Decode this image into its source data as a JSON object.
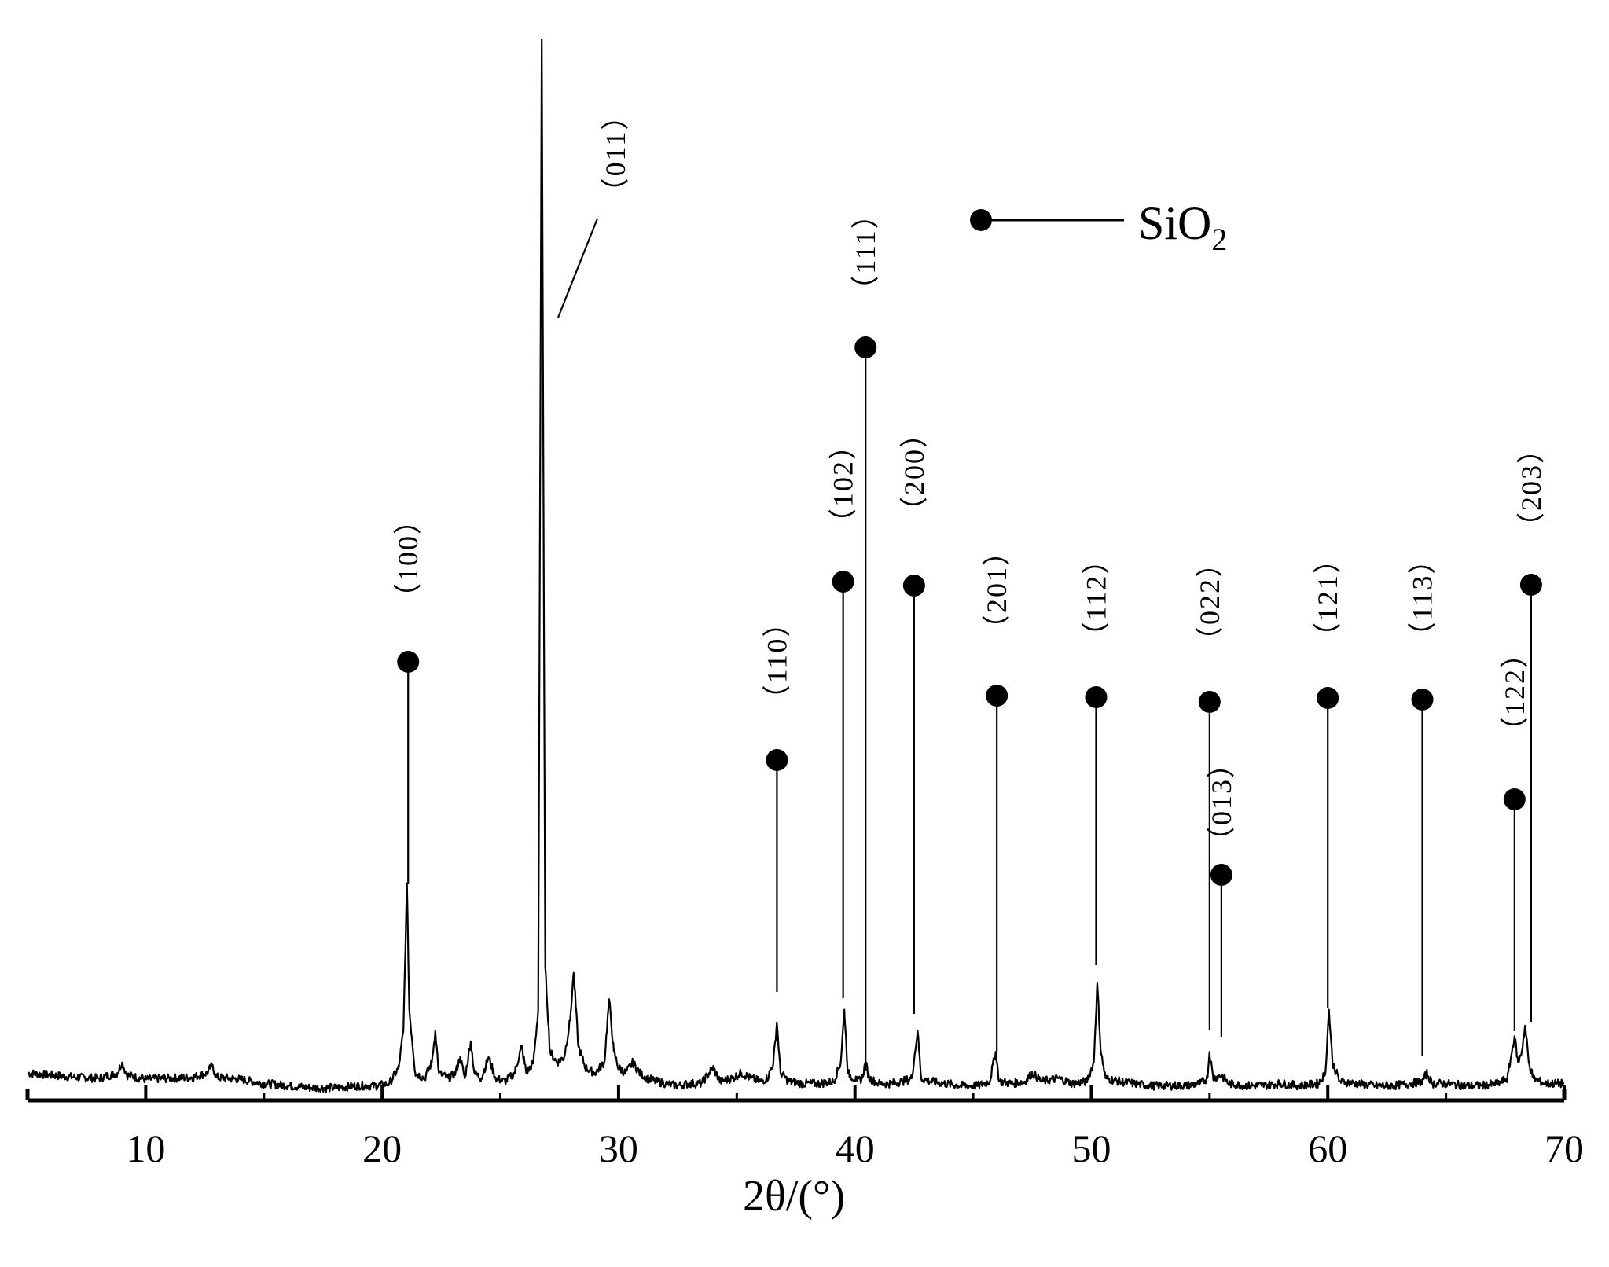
{
  "chart_data": {
    "type": "line",
    "xlabel": "2θ/(°)",
    "ylabel": "",
    "xlim": [
      5,
      70
    ],
    "x_ticks": [
      10,
      20,
      30,
      40,
      50,
      60,
      70
    ],
    "minor_x_ticks": [
      5,
      15,
      25,
      35,
      45,
      55,
      65
    ],
    "grid": false,
    "legend": {
      "marker": "filled-circle",
      "label": "SiO",
      "label_subscript": "2",
      "placement": "top-center"
    },
    "series": [
      {
        "values": [
          [
            5.0,
            0.02
          ],
          [
            6.0,
            0.018
          ],
          [
            7.0,
            0.016
          ],
          [
            8.0,
            0.015
          ],
          [
            8.8,
            0.02
          ],
          [
            9.0,
            0.03
          ],
          [
            9.2,
            0.018
          ],
          [
            10.0,
            0.014
          ],
          [
            11.0,
            0.015
          ],
          [
            12.0,
            0.016
          ],
          [
            12.6,
            0.02
          ],
          [
            12.8,
            0.027
          ],
          [
            13.0,
            0.016
          ],
          [
            14.0,
            0.014
          ],
          [
            15.0,
            0.01
          ],
          [
            16.0,
            0.008
          ],
          [
            17.0,
            0.006
          ],
          [
            18.0,
            0.006
          ],
          [
            19.0,
            0.008
          ],
          [
            19.8,
            0.008
          ],
          [
            20.3,
            0.01
          ],
          [
            20.7,
            0.025
          ],
          [
            20.9,
            0.06
          ],
          [
            21.05,
            0.2
          ],
          [
            21.15,
            0.08
          ],
          [
            21.4,
            0.02
          ],
          [
            21.8,
            0.015
          ],
          [
            22.1,
            0.03
          ],
          [
            22.25,
            0.06
          ],
          [
            22.4,
            0.02
          ],
          [
            22.8,
            0.015
          ],
          [
            23.1,
            0.02
          ],
          [
            23.3,
            0.035
          ],
          [
            23.5,
            0.015
          ],
          [
            23.75,
            0.05
          ],
          [
            23.9,
            0.02
          ],
          [
            24.2,
            0.015
          ],
          [
            24.5,
            0.035
          ],
          [
            24.8,
            0.015
          ],
          [
            25.2,
            0.012
          ],
          [
            25.6,
            0.02
          ],
          [
            25.9,
            0.045
          ],
          [
            26.1,
            0.02
          ],
          [
            26.4,
            0.03
          ],
          [
            26.6,
            0.08
          ],
          [
            26.75,
            1.0
          ],
          [
            26.9,
            0.12
          ],
          [
            27.1,
            0.04
          ],
          [
            27.4,
            0.03
          ],
          [
            27.7,
            0.035
          ],
          [
            27.95,
            0.07
          ],
          [
            28.1,
            0.115
          ],
          [
            28.3,
            0.045
          ],
          [
            28.6,
            0.025
          ],
          [
            29.0,
            0.02
          ],
          [
            29.4,
            0.03
          ],
          [
            29.6,
            0.09
          ],
          [
            29.8,
            0.04
          ],
          [
            30.0,
            0.025
          ],
          [
            30.3,
            0.02
          ],
          [
            30.6,
            0.03
          ],
          [
            30.9,
            0.02
          ],
          [
            31.2,
            0.015
          ],
          [
            31.6,
            0.012
          ],
          [
            32.0,
            0.01
          ],
          [
            32.5,
            0.008
          ],
          [
            33.0,
            0.01
          ],
          [
            33.5,
            0.01
          ],
          [
            34.0,
            0.025
          ],
          [
            34.3,
            0.012
          ],
          [
            34.8,
            0.015
          ],
          [
            35.2,
            0.02
          ],
          [
            35.6,
            0.015
          ],
          [
            36.0,
            0.012
          ],
          [
            36.3,
            0.015
          ],
          [
            36.55,
            0.03
          ],
          [
            36.7,
            0.068
          ],
          [
            36.85,
            0.02
          ],
          [
            37.2,
            0.012
          ],
          [
            37.8,
            0.01
          ],
          [
            38.5,
            0.01
          ],
          [
            39.1,
            0.012
          ],
          [
            39.4,
            0.03
          ],
          [
            39.55,
            0.08
          ],
          [
            39.7,
            0.02
          ],
          [
            40.1,
            0.012
          ],
          [
            40.3,
            0.015
          ],
          [
            40.45,
            0.03
          ],
          [
            40.6,
            0.015
          ],
          [
            41.0,
            0.01
          ],
          [
            41.5,
            0.01
          ],
          [
            42.0,
            0.012
          ],
          [
            42.4,
            0.015
          ],
          [
            42.65,
            0.06
          ],
          [
            42.8,
            0.015
          ],
          [
            43.2,
            0.012
          ],
          [
            43.8,
            0.01
          ],
          [
            44.5,
            0.008
          ],
          [
            45.2,
            0.008
          ],
          [
            45.7,
            0.012
          ],
          [
            45.95,
            0.04
          ],
          [
            46.1,
            0.012
          ],
          [
            46.6,
            0.01
          ],
          [
            47.2,
            0.012
          ],
          [
            47.5,
            0.02
          ],
          [
            47.9,
            0.012
          ],
          [
            48.6,
            0.015
          ],
          [
            49.2,
            0.01
          ],
          [
            49.8,
            0.012
          ],
          [
            50.1,
            0.03
          ],
          [
            50.25,
            0.105
          ],
          [
            50.4,
            0.04
          ],
          [
            50.6,
            0.015
          ],
          [
            51.2,
            0.012
          ],
          [
            51.8,
            0.01
          ],
          [
            52.5,
            0.008
          ],
          [
            53.2,
            0.008
          ],
          [
            54.0,
            0.008
          ],
          [
            54.6,
            0.01
          ],
          [
            54.9,
            0.015
          ],
          [
            55.0,
            0.04
          ],
          [
            55.15,
            0.015
          ],
          [
            55.5,
            0.018
          ],
          [
            55.8,
            0.01
          ],
          [
            56.5,
            0.008
          ],
          [
            57.2,
            0.008
          ],
          [
            58.0,
            0.01
          ],
          [
            58.8,
            0.008
          ],
          [
            59.6,
            0.01
          ],
          [
            59.9,
            0.02
          ],
          [
            60.05,
            0.08
          ],
          [
            60.2,
            0.03
          ],
          [
            60.5,
            0.012
          ],
          [
            61.2,
            0.01
          ],
          [
            62.0,
            0.008
          ],
          [
            62.8,
            0.008
          ],
          [
            63.5,
            0.01
          ],
          [
            64.0,
            0.012
          ],
          [
            64.2,
            0.02
          ],
          [
            64.4,
            0.01
          ],
          [
            65.0,
            0.01
          ],
          [
            65.8,
            0.008
          ],
          [
            66.5,
            0.008
          ],
          [
            67.2,
            0.01
          ],
          [
            67.6,
            0.015
          ],
          [
            67.9,
            0.055
          ],
          [
            68.05,
            0.03
          ],
          [
            68.2,
            0.04
          ],
          [
            68.35,
            0.065
          ],
          [
            68.5,
            0.03
          ],
          [
            68.7,
            0.015
          ],
          [
            69.2,
            0.01
          ],
          [
            70.0,
            0.01
          ]
        ]
      }
    ],
    "peaks": [
      {
        "label": "（100）",
        "x": 21.1
      },
      {
        "label": "（011）",
        "x": 26.75
      },
      {
        "label": "（110）",
        "x": 36.7
      },
      {
        "label": "（102）",
        "x": 39.5
      },
      {
        "label": "（111）",
        "x": 40.45
      },
      {
        "label": "（200）",
        "x": 42.5
      },
      {
        "label": "（201）",
        "x": 46.0
      },
      {
        "label": "（112）",
        "x": 50.2
      },
      {
        "label": "（022）",
        "x": 55.0
      },
      {
        "label": "（013）",
        "x": 55.5
      },
      {
        "label": "（121）",
        "x": 60.0
      },
      {
        "label": "（113）",
        "x": 64.0
      },
      {
        "label": "（122）",
        "x": 67.9
      },
      {
        "label": "（203）",
        "x": 68.6
      }
    ]
  }
}
